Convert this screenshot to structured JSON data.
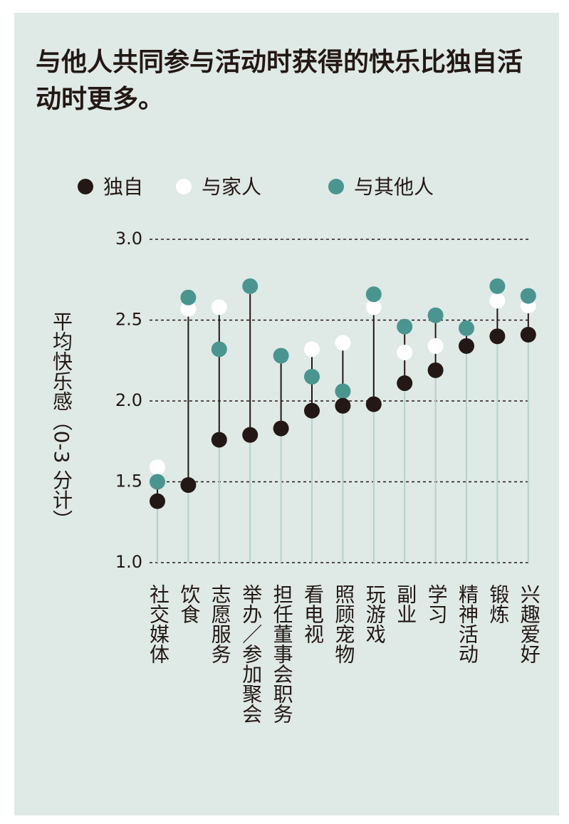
{
  "chart_data": {
    "type": "dot",
    "title": "与他人共同参与活动时获得的快乐比独自活动时更多。",
    "y_label": "平均快乐感（0-3 分计）",
    "categories": [
      "社交媒体",
      "饮食",
      "志愿服务",
      "举办／参加聚会",
      "担任董事会职务",
      "看电视",
      "照顾宠物",
      "玩游戏",
      "副业",
      "学习",
      "精神活动",
      "锻炼",
      "兴趣爱好"
    ],
    "series": [
      {
        "name": "独自",
        "color": "#231815",
        "values": [
          1.38,
          1.48,
          1.76,
          1.79,
          1.83,
          1.94,
          1.97,
          1.98,
          2.11,
          2.19,
          2.34,
          2.4,
          2.41
        ]
      },
      {
        "name": "与家人",
        "color": "#ffffff",
        "values": [
          1.59,
          2.57,
          2.58,
          2.71,
          2.28,
          2.32,
          2.36,
          2.58,
          2.3,
          2.34,
          2.45,
          2.62,
          2.59
        ]
      },
      {
        "name": "与其他人",
        "color": "#4a9590",
        "values": [
          1.5,
          2.64,
          2.32,
          2.71,
          2.28,
          2.15,
          2.06,
          2.66,
          2.46,
          2.53,
          2.45,
          2.71,
          2.65
        ]
      }
    ],
    "ylim": [
      1.0,
      3.0
    ],
    "yticks": [
      {
        "value": 1,
        "label": "1.0"
      },
      {
        "value": 1.5,
        "label": "1.5"
      },
      {
        "value": 2,
        "label": "2.0"
      },
      {
        "value": 2.5,
        "label": "2.5"
      },
      {
        "value": 3,
        "label": "3.0"
      }
    ],
    "grid": true
  }
}
